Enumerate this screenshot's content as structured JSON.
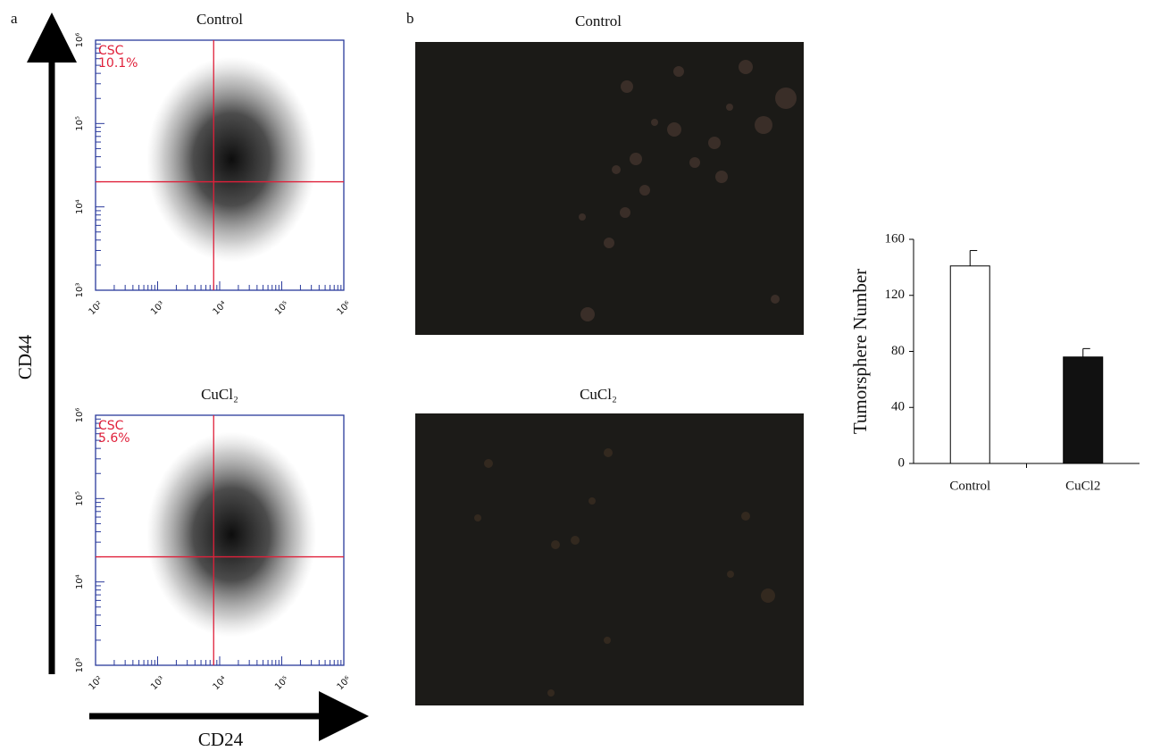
{
  "panel_labels": [
    "a",
    "b"
  ],
  "axes": {
    "x_label": "CD24",
    "y_label": "CD44"
  },
  "images": [
    {
      "title": "Control"
    },
    {
      "title": "CuCl₂"
    }
  ],
  "chart_data": [
    {
      "type": "scatter",
      "title": "Control",
      "x_log": true,
      "y_log": true,
      "xlim": [
        100,
        1000000
      ],
      "ylim": [
        1000,
        1000000
      ],
      "xticks": [
        {
          "value": 100,
          "label": "10²"
        },
        {
          "value": 1000,
          "label": "10³"
        },
        {
          "value": 10000,
          "label": "10⁴"
        },
        {
          "value": 100000,
          "label": "10⁵"
        },
        {
          "value": 1000000,
          "label": "10⁶"
        }
      ],
      "yticks": [
        {
          "value": 1000,
          "label": "10³"
        },
        {
          "value": 10000,
          "label": "10⁴"
        },
        {
          "value": 100000,
          "label": "10⁵"
        },
        {
          "value": 1000000,
          "label": "10⁶"
        }
      ],
      "gate_x": 8000,
      "gate_y": 20000,
      "gate_color": "#e0203a",
      "annotation": [
        "CSC",
        "10.1%"
      ]
    },
    {
      "type": "scatter",
      "title": "CuCl₂",
      "x_log": true,
      "y_log": true,
      "xlim": [
        100,
        1000000
      ],
      "ylim": [
        1000,
        1000000
      ],
      "xticks": [
        {
          "value": 100,
          "label": "10²"
        },
        {
          "value": 1000,
          "label": "10³"
        },
        {
          "value": 10000,
          "label": "10⁴"
        },
        {
          "value": 100000,
          "label": "10⁵"
        },
        {
          "value": 1000000,
          "label": "10⁶"
        }
      ],
      "yticks": [
        {
          "value": 1000,
          "label": "10³"
        },
        {
          "value": 10000,
          "label": "10⁴"
        },
        {
          "value": 100000,
          "label": "10⁵"
        },
        {
          "value": 1000000,
          "label": "10⁶"
        }
      ],
      "gate_x": 8000,
      "gate_y": 20000,
      "gate_color": "#e0203a",
      "annotation": [
        "CSC",
        "5.6%"
      ]
    },
    {
      "type": "bar",
      "y_label": "Tumorsphere Number",
      "categories": [
        "Control",
        "CuCl2"
      ],
      "values": [
        141,
        76
      ],
      "errors": [
        11,
        6
      ],
      "colors": [
        "#ffffff",
        "#111111"
      ],
      "ylim": [
        0,
        160
      ],
      "yticks": [
        0,
        40,
        80,
        120,
        160
      ]
    }
  ]
}
